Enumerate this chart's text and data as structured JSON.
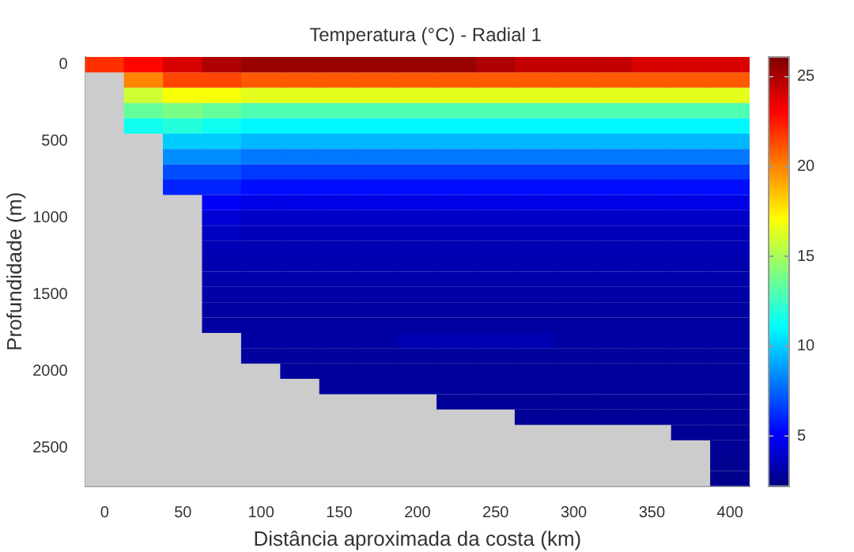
{
  "chart_data": {
    "type": "heatmap",
    "title": "Temperatura (°C) - Radial 1",
    "xlabel": "Distância aproximada da costa (km)",
    "ylabel": "Profundidade (m)",
    "categories": [
      "0",
      null,
      "50",
      null,
      "100",
      null,
      "150",
      null,
      "200",
      null,
      "250",
      null,
      "300",
      null,
      "350",
      null,
      "400"
    ],
    "y_categories": [
      "0",
      null,
      null,
      null,
      null,
      "500",
      null,
      null,
      null,
      null,
      "1000",
      null,
      null,
      null,
      null,
      "1500",
      null,
      null,
      null,
      null,
      "2000",
      null,
      null,
      null,
      null,
      "2500",
      null,
      null
    ],
    "clim": [
      2.2,
      26.1
    ],
    "cticks": [
      5,
      10,
      15,
      20,
      25
    ],
    "cells": [
      [
        22,
        23,
        24,
        25,
        25.5,
        25.5,
        25.5,
        25.5,
        25.5,
        25.5,
        25,
        24.5,
        24.5,
        24.5,
        24,
        24,
        24
      ],
      [
        null,
        20,
        21.5,
        21.5,
        21,
        21,
        21,
        21,
        21,
        21,
        21,
        21,
        21,
        21,
        21,
        21,
        21
      ],
      [
        null,
        16,
        17,
        17,
        16.5,
        16.5,
        16.5,
        16.5,
        16.5,
        16.5,
        16.5,
        16.5,
        16.5,
        16.5,
        16.5,
        16.5,
        16.5
      ],
      [
        null,
        13.5,
        14,
        13.5,
        13,
        13,
        13,
        13,
        13,
        13,
        13,
        13,
        13,
        13,
        13,
        13,
        13
      ],
      [
        null,
        11.5,
        12,
        11.5,
        11,
        11,
        11,
        11,
        11,
        11,
        11,
        11,
        11,
        11,
        11,
        11,
        11
      ],
      [
        null,
        null,
        10,
        10,
        9.5,
        9.5,
        9.5,
        9.5,
        9.5,
        9.5,
        9.5,
        9.5,
        9.5,
        9.5,
        9.5,
        9.5,
        9.5
      ],
      [
        null,
        null,
        8.5,
        8.5,
        8,
        8,
        8,
        8,
        8,
        8,
        8,
        8,
        8,
        8,
        8,
        8,
        8
      ],
      [
        null,
        null,
        7,
        7,
        6.5,
        6.5,
        6.5,
        6.5,
        6.5,
        6.5,
        6.5,
        6.5,
        6.5,
        6.5,
        6.5,
        6.5,
        6.5
      ],
      [
        null,
        null,
        6,
        6,
        5.5,
        5.5,
        5.5,
        5.5,
        5.5,
        5.5,
        5.5,
        5.5,
        5.5,
        5.5,
        5.5,
        5.5,
        5.5
      ],
      [
        null,
        null,
        null,
        5,
        4.6,
        4.6,
        4.6,
        4.6,
        4.6,
        4.6,
        4.6,
        4.6,
        4.6,
        4.6,
        4.6,
        4.6,
        4.6
      ],
      [
        null,
        null,
        null,
        4.2,
        3.9,
        3.9,
        3.9,
        3.9,
        3.9,
        3.9,
        3.9,
        3.9,
        3.9,
        3.9,
        3.9,
        3.9,
        3.9
      ],
      [
        null,
        null,
        null,
        3.7,
        3.6,
        3.6,
        3.6,
        3.6,
        3.6,
        3.6,
        3.6,
        3.6,
        3.6,
        3.6,
        3.6,
        3.6,
        3.6
      ],
      [
        null,
        null,
        null,
        3.5,
        3.4,
        3.4,
        3.4,
        3.4,
        3.4,
        3.4,
        3.4,
        3.4,
        3.4,
        3.4,
        3.4,
        3.4,
        3.4
      ],
      [
        null,
        null,
        null,
        3.3,
        3.3,
        3.3,
        3.3,
        3.3,
        3.3,
        3.3,
        3.3,
        3.3,
        3.3,
        3.3,
        3.3,
        3.3,
        3.3
      ],
      [
        null,
        null,
        null,
        3.2,
        3.2,
        3.2,
        3.2,
        3.2,
        3.2,
        3.2,
        3.2,
        3.2,
        3.2,
        3.2,
        3.2,
        3.2,
        3.2
      ],
      [
        null,
        null,
        null,
        3.1,
        3.1,
        3.1,
        3.1,
        3.1,
        3.1,
        3.1,
        3.1,
        3.1,
        3.1,
        3.1,
        3.1,
        3.1,
        3.1
      ],
      [
        null,
        null,
        null,
        3,
        3,
        3,
        3,
        3,
        3,
        3,
        3,
        3,
        3,
        3,
        3,
        3,
        3
      ],
      [
        null,
        null,
        null,
        3,
        3,
        3,
        3,
        3,
        3,
        3,
        3,
        3,
        3,
        3,
        3,
        3,
        3
      ],
      [
        null,
        null,
        null,
        null,
        3,
        3,
        3,
        3,
        3.4,
        3.4,
        3.4,
        3.4,
        3,
        3,
        3,
        3,
        3
      ],
      [
        null,
        null,
        null,
        null,
        2.9,
        2.9,
        2.9,
        2.9,
        2.9,
        2.9,
        2.9,
        2.9,
        2.9,
        2.9,
        2.9,
        2.9,
        2.9
      ],
      [
        null,
        null,
        null,
        null,
        null,
        2.9,
        2.9,
        2.9,
        2.9,
        2.9,
        2.9,
        2.9,
        2.9,
        2.9,
        2.9,
        2.9,
        2.9
      ],
      [
        null,
        null,
        null,
        null,
        null,
        null,
        2.9,
        2.9,
        2.9,
        2.9,
        2.9,
        2.9,
        2.9,
        2.9,
        2.9,
        2.9,
        2.9
      ],
      [
        null,
        null,
        null,
        null,
        null,
        null,
        null,
        null,
        null,
        2.8,
        2.8,
        2.8,
        2.8,
        2.8,
        2.8,
        2.8,
        2.8
      ],
      [
        null,
        null,
        null,
        null,
        null,
        null,
        null,
        null,
        null,
        null,
        null,
        2.8,
        2.8,
        2.8,
        2.8,
        2.8,
        2.8
      ],
      [
        null,
        null,
        null,
        null,
        null,
        null,
        null,
        null,
        null,
        null,
        null,
        null,
        null,
        null,
        null,
        2.7,
        2.7
      ],
      [
        null,
        null,
        null,
        null,
        null,
        null,
        null,
        null,
        null,
        null,
        null,
        null,
        null,
        null,
        null,
        null,
        2.7
      ],
      [
        null,
        null,
        null,
        null,
        null,
        null,
        null,
        null,
        null,
        null,
        null,
        null,
        null,
        null,
        null,
        null,
        2.6
      ],
      [
        null,
        null,
        null,
        null,
        null,
        null,
        null,
        null,
        null,
        null,
        null,
        null,
        null,
        null,
        null,
        null,
        2.5
      ]
    ]
  }
}
